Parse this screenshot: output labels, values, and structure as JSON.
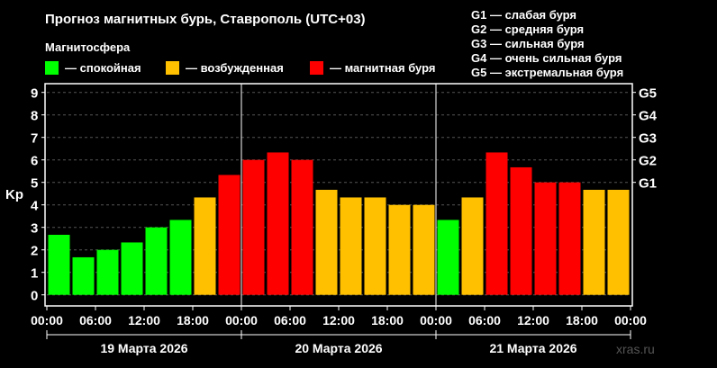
{
  "chart_data": {
    "type": "bar",
    "title": "Прогноз магнитных бурь, Ставрополь (UTC+03)",
    "legend_title": "Магнитосфера",
    "legend": [
      {
        "label": "— спокойная",
        "color": "#00ff00"
      },
      {
        "label": "— возбужденная",
        "color": "#ffc000"
      },
      {
        "label": "— магнитная буря",
        "color": "#ff0000"
      }
    ],
    "g_legend": [
      "G1 — слабая буря",
      "G2 — средняя буря",
      "G3 — сильная буря",
      "G4 — очень сильная буря",
      "G5 — экстремальная буря"
    ],
    "ylabel": "Kp",
    "ylim": [
      0,
      9
    ],
    "yticks": [
      "0",
      "1",
      "2",
      "3",
      "4",
      "5",
      "6",
      "7",
      "8",
      "9"
    ],
    "g_ticks": [
      {
        "label": "G1",
        "kp": 5
      },
      {
        "label": "G2",
        "kp": 6
      },
      {
        "label": "G3",
        "kp": 7
      },
      {
        "label": "G4",
        "kp": 8
      },
      {
        "label": "G5",
        "kp": 9
      }
    ],
    "xticks": [
      "00:00",
      "06:00",
      "12:00",
      "18:00",
      "00:00",
      "06:00",
      "12:00",
      "18:00",
      "00:00",
      "06:00",
      "12:00",
      "18:00",
      "00:00"
    ],
    "days": [
      "19 Марта 2026",
      "20 Марта 2026",
      "21 Марта 2026"
    ],
    "values": [
      2.67,
      1.67,
      2.0,
      2.33,
      3.0,
      3.33,
      4.33,
      5.33,
      6.0,
      6.33,
      6.0,
      4.67,
      4.33,
      4.33,
      4.0,
      4.0,
      3.33,
      4.33,
      6.33,
      5.67,
      5.0,
      5.0,
      4.67,
      4.67
    ],
    "levels": [
      "calm",
      "calm",
      "calm",
      "calm",
      "calm",
      "calm",
      "active",
      "storm",
      "storm",
      "storm",
      "storm",
      "active",
      "active",
      "active",
      "active",
      "active",
      "calm",
      "active",
      "storm",
      "storm",
      "storm",
      "storm",
      "active",
      "active"
    ],
    "level_colors": {
      "calm": "#00ff00",
      "active": "#ffc000",
      "storm": "#ff0000"
    },
    "grid": true,
    "watermark": "xras.ru"
  }
}
